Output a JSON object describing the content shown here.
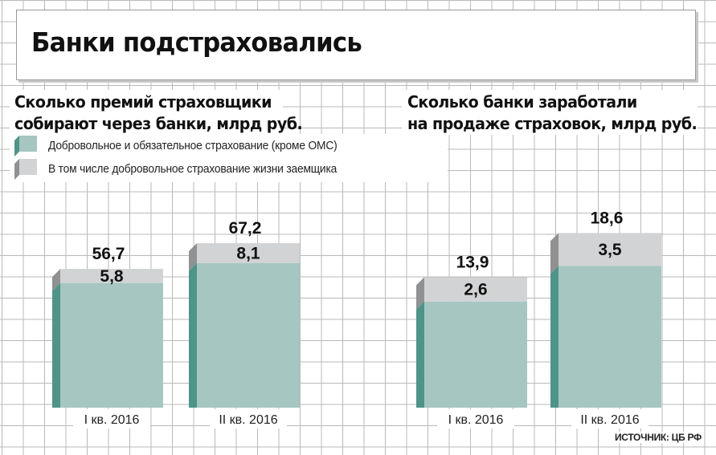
{
  "title": "Банки подстраховались",
  "source": "ИСТОЧНИК: ЦБ РФ",
  "legend": [
    {
      "label": "Добровольное и обязательное страхование (кроме ОМС)",
      "color": "#a6c6c1",
      "side": "#4f9488"
    },
    {
      "label": "В том числе добровольное страхование жизни заемщика",
      "color": "#d2d3d4",
      "side": "#8f9192"
    }
  ],
  "chart_data": [
    {
      "type": "bar",
      "title": "Сколько премий страховщики собирают через банки, млрд руб.",
      "title_lines": [
        "Сколько премий страховщики",
        "собирают через банки, млрд руб."
      ],
      "categories": [
        "I кв. 2016",
        "II кв. 2016"
      ],
      "series": [
        {
          "name": "Добровольное и обязательное страхование (кроме ОМС)",
          "values": [
            56.7,
            67.2
          ],
          "labels": [
            "56,7",
            "67,2"
          ]
        },
        {
          "name": "В том числе добровольное страхование жизни заемщика",
          "values": [
            5.8,
            8.1
          ],
          "labels": [
            "5,8",
            "8,1"
          ]
        }
      ]
    },
    {
      "type": "bar",
      "title": "Сколько банки заработали на продаже страховок, млрд руб.",
      "title_lines": [
        "Сколько банки заработали",
        "на продаже страховок, млрд руб."
      ],
      "categories": [
        "I кв. 2016",
        "II кв. 2016"
      ],
      "series": [
        {
          "name": "Добровольное и обязательное страхование (кроме ОМС)",
          "values": [
            13.9,
            18.6
          ],
          "labels": [
            "13,9",
            "18,6"
          ]
        },
        {
          "name": "В том числе добровольное страхование жизни заемщика",
          "values": [
            2.6,
            3.5
          ],
          "labels": [
            "2,6",
            "3,5"
          ]
        }
      ]
    }
  ]
}
